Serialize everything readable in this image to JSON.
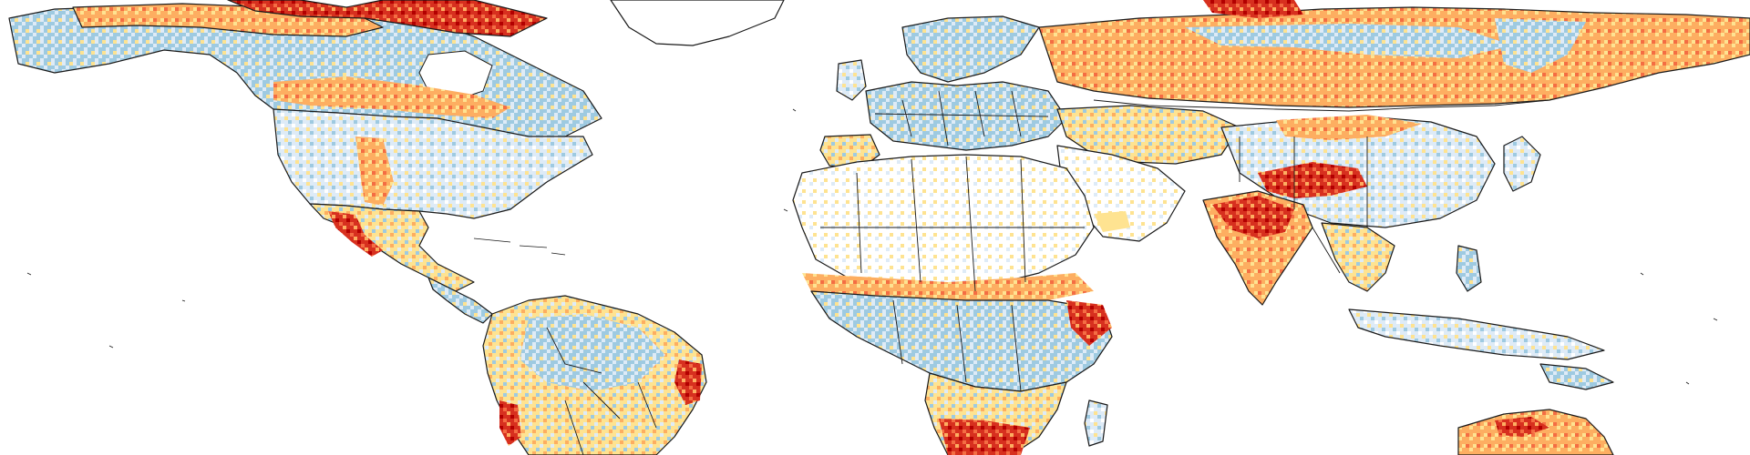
{
  "map": {
    "palette": {
      "ocean": "#ffffff",
      "no_data": "#ffffff",
      "strong_decrease": "#9ecae1",
      "weak_decrease": "#deebf7",
      "weak_increase": "#fee391",
      "moderate_increase": "#fdae61",
      "strong_increase": "#f46d43",
      "extreme_increase": "#d7301f",
      "peak_increase": "#b30000",
      "coastline": "#1a1a1a"
    },
    "regions": [
      {
        "id": "alaska-canada",
        "dominant": "strong_decrease"
      },
      {
        "id": "arctic-canada",
        "dominant": "strong_increase"
      },
      {
        "id": "greenland",
        "dominant": "no_data"
      },
      {
        "id": "usa",
        "dominant": "weak_decrease"
      },
      {
        "id": "mexico",
        "dominant": "extreme_increase"
      },
      {
        "id": "south-america",
        "dominant": "weak_increase"
      },
      {
        "id": "europe",
        "dominant": "strong_decrease"
      },
      {
        "id": "russia",
        "dominant": "moderate_increase"
      },
      {
        "id": "north-africa",
        "dominant": "no_data"
      },
      {
        "id": "sahel",
        "dominant": "moderate_increase"
      },
      {
        "id": "central-africa",
        "dominant": "strong_decrease"
      },
      {
        "id": "southern-africa",
        "dominant": "extreme_increase"
      },
      {
        "id": "middle-east",
        "dominant": "weak_increase"
      },
      {
        "id": "south-asia",
        "dominant": "extreme_increase"
      },
      {
        "id": "china",
        "dominant": "weak_decrease"
      },
      {
        "id": "southeast-asia",
        "dominant": "weak_increase"
      },
      {
        "id": "australia",
        "dominant": "strong_increase"
      }
    ]
  }
}
